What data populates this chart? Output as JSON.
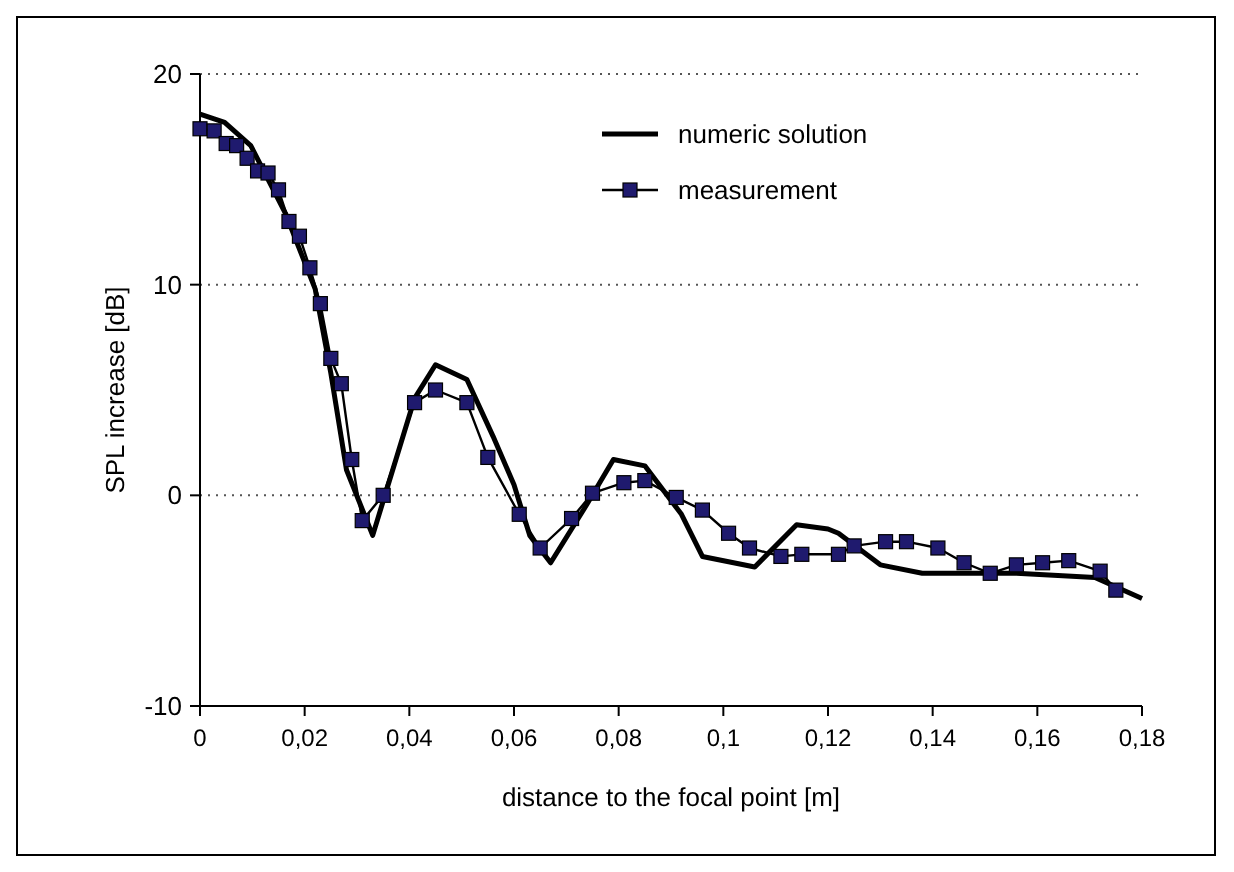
{
  "chart_data": {
    "type": "line",
    "xlabel": "distance to the focal point [m]",
    "ylabel": "SPL increase [dB]",
    "xlim": [
      0,
      0.18
    ],
    "ylim": [
      -10,
      20
    ],
    "xticks": [
      0,
      {
        "value": 0.02,
        "label": "0,02"
      },
      {
        "value": 0.04,
        "label": "0,04"
      },
      {
        "value": 0.06,
        "label": "0,06"
      },
      {
        "value": 0.08,
        "label": "0,08"
      },
      {
        "value": 0.1,
        "label": "0,1"
      },
      {
        "value": 0.12,
        "label": "0,12"
      },
      {
        "value": 0.14,
        "label": "0,14"
      },
      {
        "value": 0.16,
        "label": "0,16"
      },
      {
        "value": 0.18,
        "label": "0,18"
      }
    ],
    "yticks": [
      -10,
      0,
      10,
      20
    ],
    "grid": "y",
    "legend": "top right",
    "series": [
      {
        "name": "numeric solution",
        "color": "#000000",
        "marker": "none",
        "x": [
          0,
          0.0047,
          0.0097,
          0.0163,
          0.022,
          0.025,
          0.028,
          0.033,
          0.041,
          0.045,
          0.051,
          0.056,
          0.06,
          0.063,
          0.067,
          0.074,
          0.079,
          0.085,
          0.092,
          0.096,
          0.106,
          0.114,
          0.12,
          0.122,
          0.13,
          0.138,
          0.156,
          0.171,
          0.18
        ],
        "values": [
          18.1,
          17.7,
          16.6,
          13.4,
          9.8,
          5.8,
          1.2,
          -1.9,
          4.6,
          6.2,
          5.5,
          2.8,
          0.5,
          -1.9,
          -3.2,
          -0.4,
          1.7,
          1.4,
          -0.9,
          -2.9,
          -3.4,
          -1.4,
          -1.6,
          -1.8,
          -3.3,
          -3.7,
          -3.7,
          -3.9,
          -4.9
        ]
      },
      {
        "name": "measurement",
        "color": "#1f1a6e",
        "marker": "square",
        "x": [
          0,
          0.0027,
          0.005,
          0.007,
          0.009,
          0.011,
          0.013,
          0.015,
          0.017,
          0.019,
          0.021,
          0.023,
          0.025,
          0.027,
          0.029,
          0.031,
          0.035,
          0.041,
          0.045,
          0.051,
          0.055,
          0.061,
          0.065,
          0.071,
          0.075,
          0.081,
          0.085,
          0.091,
          0.096,
          0.101,
          0.105,
          0.111,
          0.115,
          0.122,
          0.125,
          0.131,
          0.135,
          0.141,
          0.146,
          0.151,
          0.156,
          0.161,
          0.166,
          0.172,
          0.175
        ],
        "values": [
          17.4,
          17.3,
          16.7,
          16.6,
          16.0,
          15.4,
          15.3,
          14.5,
          13.0,
          12.3,
          10.8,
          9.1,
          6.5,
          5.3,
          1.7,
          -1.2,
          0,
          4.4,
          5.0,
          4.4,
          1.8,
          -0.9,
          -2.5,
          -1.1,
          0.1,
          0.6,
          0.7,
          -0.1,
          -0.7,
          -1.8,
          -2.5,
          -2.9,
          -2.8,
          -2.8,
          -2.4,
          -2.2,
          -2.2,
          -2.5,
          -3.2,
          -3.7,
          -3.3,
          -3.2,
          -3.1,
          -3.6,
          -4.5
        ]
      }
    ]
  }
}
